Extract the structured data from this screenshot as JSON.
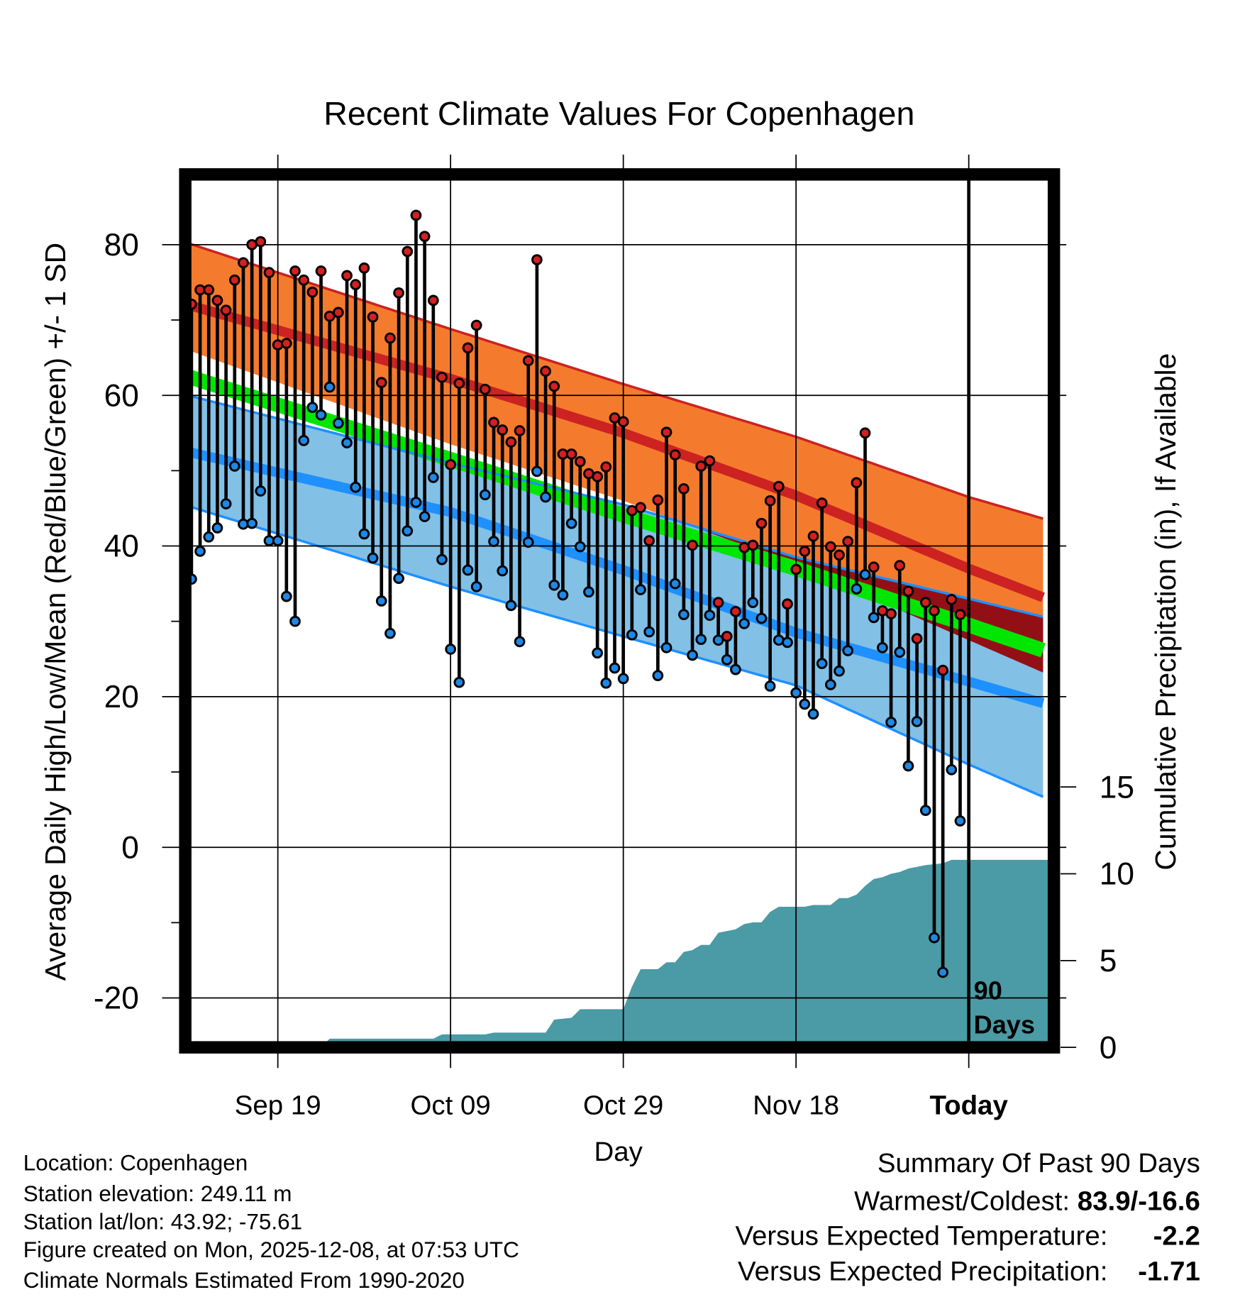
{
  "chart_data": {
    "type": "line",
    "title": "Recent Climate Values For Copenhagen",
    "xlabel": "Day",
    "ylabel": "Average Daily High/Low/Mean (Red/Blue/Green) +/- 1 SD",
    "y2label": "Cumulative Precipitation (in), If Available",
    "ylim": [
      -26,
      89
    ],
    "y2lim": [
      0,
      60
    ],
    "xlim_days_relative_to_today": [
      -90.4,
      9
    ],
    "yticks": [
      "80",
      "60",
      "40",
      "20",
      "0",
      "-20"
    ],
    "ytick_values": [
      80,
      60,
      40,
      20,
      0,
      -20
    ],
    "y2ticks": [
      "15",
      "10",
      "5",
      "0"
    ],
    "y2tick_values": [
      15,
      10,
      5,
      0
    ],
    "xticks": [
      "Sep 19",
      "Oct 09",
      "Oct 29",
      "Nov 18",
      "Today"
    ],
    "xtick_days": [
      -80,
      -60,
      -40,
      -20,
      0
    ],
    "grid": true,
    "today_marker_label_line1": "90",
    "today_marker_label_line2": "Days",
    "daily_high": [
      72.1,
      74,
      74,
      72.6,
      71.3,
      75.3,
      77.6,
      80,
      80.4,
      76.3,
      66.7,
      66.9,
      76.5,
      75.3,
      73.7,
      76.5,
      70.5,
      71,
      75.9,
      74.7,
      76.9,
      70.4,
      61.7,
      67.6,
      73.6,
      79.1,
      83.9,
      81.1,
      72.6,
      62.4,
      50.8,
      61.6,
      66.3,
      69.3,
      60.8,
      56.4,
      55.4,
      53.8,
      55.3,
      64.6,
      78,
      63.2,
      61.2,
      52.2,
      52.2,
      51.2,
      49.6,
      49.2,
      50.5,
      57,
      56.5,
      44.7,
      45.1,
      40.7,
      46.1,
      55.1,
      52.1,
      47.6,
      40.1,
      50.6,
      51.3,
      32.5,
      28,
      31.3,
      39.8,
      40.1,
      43,
      46,
      47.9,
      32.3,
      36.9,
      39.3,
      41.3,
      45.7,
      39.9,
      38.8,
      40.6,
      48.4,
      55,
      37.2,
      31.4,
      31,
      37.4,
      34,
      27.7,
      32.5,
      31.4,
      23.5,
      32.9,
      30.9
    ],
    "daily_low": [
      35.6,
      39.3,
      41.2,
      42.4,
      45.6,
      50.6,
      42.9,
      43,
      47.3,
      40.7,
      40.7,
      33.3,
      30,
      54,
      58.4,
      57.4,
      61.1,
      56.3,
      53.7,
      47.8,
      41.6,
      38.4,
      32.7,
      28.4,
      35.7,
      42,
      45.8,
      43.9,
      49.1,
      38.2,
      26.3,
      21.9,
      36.8,
      34.6,
      46.8,
      40.6,
      36.7,
      32.1,
      27.3,
      40.5,
      49.9,
      46.5,
      34.8,
      33.5,
      43,
      39.9,
      33.9,
      25.8,
      21.8,
      23.8,
      22.4,
      28.2,
      34.2,
      28.6,
      22.8,
      26.5,
      35,
      30.9,
      25.5,
      27.6,
      30.8,
      27.5,
      24.9,
      23.6,
      29.7,
      32.5,
      30.4,
      21.4,
      27.5,
      27.2,
      20.5,
      19,
      17.7,
      24.4,
      21.6,
      23.4,
      26.1,
      34.3,
      36.2,
      30.5,
      26.5,
      16.6,
      25.9,
      10.8,
      16.7,
      4.9,
      -12,
      -16.6,
      10.3,
      3.5
    ],
    "normals": {
      "days": [
        -90.4,
        -60,
        -40,
        -20,
        0,
        9
      ],
      "high_plus_sd": [
        80.2,
        68.8,
        61.5,
        54.5,
        46.5,
        43.5
      ],
      "high_mean": [
        72,
        62.2,
        55,
        46.7,
        37,
        33
      ],
      "high_minus_sd": [
        66,
        53.5,
        46,
        37.5,
        27.5,
        23
      ],
      "mean": [
        62.5,
        51.5,
        44.1,
        37,
        29.5,
        26
      ],
      "low_plus_sd": [
        60,
        51,
        45.5,
        38.5,
        33,
        30.5
      ],
      "low_mean": [
        52.5,
        44.5,
        36.8,
        28.5,
        22,
        19
      ],
      "low_minus_sd": [
        45.3,
        34.6,
        28,
        21.5,
        11,
        6.5
      ]
    },
    "cumulative_precip": [
      [
        -90,
        0
      ],
      [
        -75,
        0
      ],
      [
        -74,
        0.5
      ],
      [
        -62,
        0.5
      ],
      [
        -61,
        0.75
      ],
      [
        -56,
        0.75
      ],
      [
        -55,
        0.85
      ],
      [
        -49,
        0.85
      ],
      [
        -48,
        1.6
      ],
      [
        -46,
        1.7
      ],
      [
        -45,
        2.2
      ],
      [
        -40,
        2.2
      ],
      [
        -39,
        3.5
      ],
      [
        -38,
        4.5
      ],
      [
        -36,
        4.5
      ],
      [
        -35,
        4.9
      ],
      [
        -34,
        4.9
      ],
      [
        -33,
        5.5
      ],
      [
        -32,
        5.6
      ],
      [
        -31,
        5.9
      ],
      [
        -30,
        5.9
      ],
      [
        -29,
        6.6
      ],
      [
        -28,
        6.7
      ],
      [
        -27,
        6.8
      ],
      [
        -26,
        7.1
      ],
      [
        -25,
        7.2
      ],
      [
        -24,
        7.2
      ],
      [
        -23,
        7.8
      ],
      [
        -22,
        8.1
      ],
      [
        -19,
        8.1
      ],
      [
        -18,
        8.2
      ],
      [
        -16,
        8.2
      ],
      [
        -15,
        8.6
      ],
      [
        -14,
        8.6
      ],
      [
        -13,
        8.8
      ],
      [
        -12,
        9.3
      ],
      [
        -11,
        9.7
      ],
      [
        -10,
        9.8
      ],
      [
        -9,
        10.0
      ],
      [
        -8,
        10.1
      ],
      [
        -7,
        10.3
      ],
      [
        -6,
        10.4
      ],
      [
        -5,
        10.5
      ],
      [
        -3,
        10.6
      ],
      [
        -2,
        10.8
      ],
      [
        9,
        10.8
      ]
    ],
    "colors": {
      "high_band": "#f47b2d",
      "high_line": "#cc2222",
      "overlap": "#930f16",
      "mean": "#00e600",
      "low_band": "#82c0e6",
      "low_line": "#1e90ff",
      "precip": "#4a9ba5",
      "high_dot": "#d42020",
      "low_dot": "#1e88e5"
    }
  },
  "info": {
    "location": "Location: Copenhagen",
    "elevation": "Station elevation: 249.11 m",
    "latlon": "Station lat/lon: 43.92; -75.61",
    "created": "Figure created on Mon, 2025-12-08, at 07:53 UTC",
    "normals": "Climate Normals Estimated From 1990-2020"
  },
  "summary": {
    "title": "Summary Of Past 90 Days",
    "warmest_label": "Warmest/Coldest: ",
    "warmest_value": "83.9/-16.6",
    "temp_label": "Versus Expected Temperature:",
    "temp_value": "-2.2",
    "temp_color": "#1e8fff",
    "precip_label": "Versus Expected Precipitation:",
    "precip_value": "-1.71",
    "precip_color": "#a0522d"
  }
}
